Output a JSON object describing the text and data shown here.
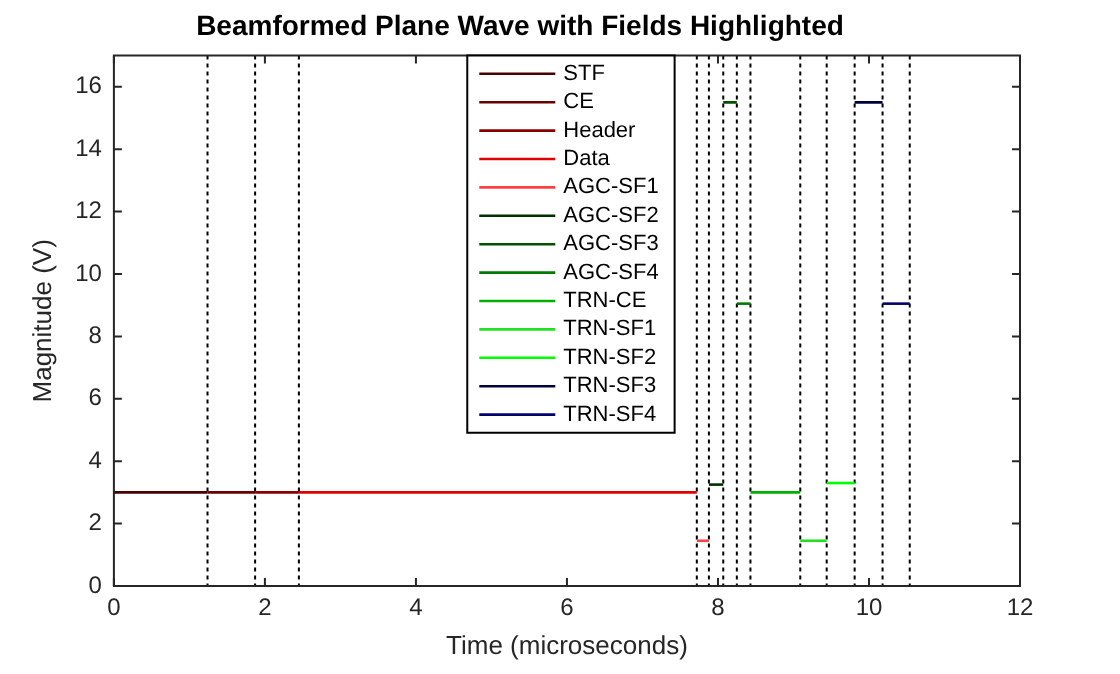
{
  "chart_data": {
    "type": "line",
    "title": "Beamformed Plane Wave with Fields Highlighted",
    "xlabel": "Time (microseconds)",
    "ylabel": "Magnitude (V)",
    "xlim": [
      0,
      12
    ],
    "xticks": [
      0,
      2,
      4,
      6,
      8,
      10,
      12
    ],
    "ylim": [
      0,
      17
    ],
    "yticks": [
      0,
      2,
      4,
      6,
      8,
      10,
      12,
      14,
      16
    ],
    "grid": false,
    "legend": "top",
    "marker": "none",
    "line_style": "solid",
    "series": [
      {
        "name": "STF",
        "color": "#4a0000",
        "x": [
          0,
          1.24
        ],
        "values": [
          3,
          3
        ]
      },
      {
        "name": "CE",
        "color": "#6a0000",
        "x": [
          1.24,
          1.87
        ],
        "values": [
          3,
          3
        ]
      },
      {
        "name": "Header",
        "color": "#8a0000",
        "x": [
          1.87,
          2.45
        ],
        "values": [
          3,
          3
        ]
      },
      {
        "name": "Data",
        "color": "#e00000",
        "x": [
          2.45,
          7.72
        ],
        "values": [
          3,
          3
        ]
      },
      {
        "name": "AGC-SF1",
        "color": "#ff4040",
        "x": [
          7.72,
          7.88
        ],
        "values": [
          1.45,
          1.45
        ]
      },
      {
        "name": "AGC-SF2",
        "color": "#003000",
        "x": [
          7.88,
          8.07
        ],
        "values": [
          3.25,
          3.25
        ]
      },
      {
        "name": "AGC-SF3",
        "color": "#005000",
        "x": [
          8.07,
          8.25
        ],
        "values": [
          15.5,
          15.5
        ]
      },
      {
        "name": "AGC-SF4",
        "color": "#007a00",
        "x": [
          8.25,
          8.43
        ],
        "values": [
          9.05,
          9.05
        ]
      },
      {
        "name": "TRN-CE",
        "color": "#00b000",
        "x": [
          8.43,
          9.09
        ],
        "values": [
          3,
          3
        ]
      },
      {
        "name": "TRN-SF1",
        "color": "#20e020",
        "x": [
          9.09,
          9.44
        ],
        "values": [
          1.45,
          1.45
        ]
      },
      {
        "name": "TRN-SF2",
        "color": "#00ff00",
        "x": [
          9.44,
          9.81
        ],
        "values": [
          3.3,
          3.3
        ]
      },
      {
        "name": "TRN-SF3",
        "color": "#000040",
        "x": [
          9.81,
          10.18
        ],
        "values": [
          15.5,
          15.5
        ]
      },
      {
        "name": "TRN-SF4",
        "color": "#000070",
        "x": [
          10.18,
          10.54
        ],
        "values": [
          9.05,
          9.05
        ]
      }
    ],
    "ref_lines": [
      {
        "axis": "x",
        "value": 1.24,
        "line_style": "dotted",
        "color": "#000000"
      },
      {
        "axis": "x",
        "value": 1.87,
        "line_style": "dotted",
        "color": "#000000"
      },
      {
        "axis": "x",
        "value": 2.45,
        "line_style": "dotted",
        "color": "#000000"
      },
      {
        "axis": "x",
        "value": 7.72,
        "line_style": "dotted",
        "color": "#000000"
      },
      {
        "axis": "x",
        "value": 7.88,
        "line_style": "dotted",
        "color": "#000000"
      },
      {
        "axis": "x",
        "value": 8.07,
        "line_style": "dotted",
        "color": "#000000"
      },
      {
        "axis": "x",
        "value": 8.25,
        "line_style": "dotted",
        "color": "#000000"
      },
      {
        "axis": "x",
        "value": 8.43,
        "line_style": "dotted",
        "color": "#000000"
      },
      {
        "axis": "x",
        "value": 9.09,
        "line_style": "dotted",
        "color": "#000000"
      },
      {
        "axis": "x",
        "value": 9.44,
        "line_style": "dotted",
        "color": "#000000"
      },
      {
        "axis": "x",
        "value": 9.81,
        "line_style": "dotted",
        "color": "#000000"
      },
      {
        "axis": "x",
        "value": 10.18,
        "line_style": "dotted",
        "color": "#000000"
      },
      {
        "axis": "x",
        "value": 10.54,
        "line_style": "dotted",
        "color": "#000000"
      }
    ]
  }
}
